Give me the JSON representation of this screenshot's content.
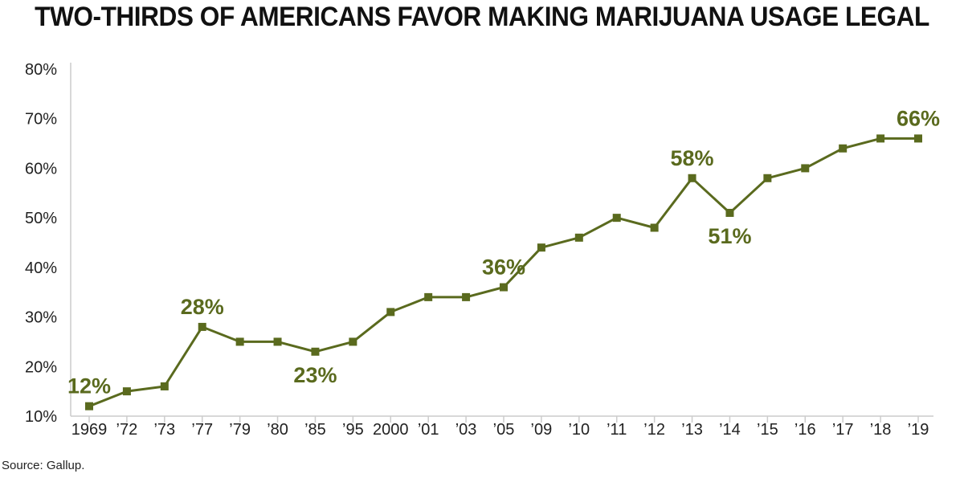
{
  "title": "TWO-THIRDS OF AMERICANS FAVOR MAKING MARIJUANA USAGE LEGAL",
  "source": "Source: Gallup.",
  "chart_data": {
    "type": "line",
    "title": "TWO-THIRDS OF AMERICANS FAVOR MAKING MARIJUANA USAGE LEGAL",
    "xlabel": "",
    "ylabel": "",
    "categories": [
      "1969",
      "’72",
      "’73",
      "’77",
      "’79",
      "’80",
      "’85",
      "’95",
      "2000",
      "’01",
      "’03",
      "’05",
      "’09",
      "’10",
      "’11",
      "’12",
      "’13",
      "’14",
      "’15",
      "’16",
      "’17",
      "’18",
      "’19"
    ],
    "series": [
      {
        "values": [
          12,
          15,
          16,
          28,
          25,
          25,
          23,
          25,
          31,
          34,
          34,
          36,
          44,
          46,
          50,
          48,
          58,
          51,
          58,
          60,
          64,
          66,
          66
        ]
      }
    ],
    "y_ticks": [
      "10%",
      "20%",
      "30%",
      "40%",
      "50%",
      "60%",
      "70%",
      "80%"
    ],
    "ylim": [
      10,
      80
    ],
    "grid": false,
    "legend": "none",
    "annotations": [
      {
        "index": 0,
        "text": "12%"
      },
      {
        "index": 3,
        "text": "28%"
      },
      {
        "index": 6,
        "text": "23%"
      },
      {
        "index": 11,
        "text": "36%"
      },
      {
        "index": 16,
        "text": "58%"
      },
      {
        "index": 17,
        "text": "51%"
      },
      {
        "index": 22,
        "text": "66%"
      }
    ],
    "colors": {
      "line": "#5a6a1e",
      "axis": "#cccccc",
      "text": "#222222"
    }
  }
}
